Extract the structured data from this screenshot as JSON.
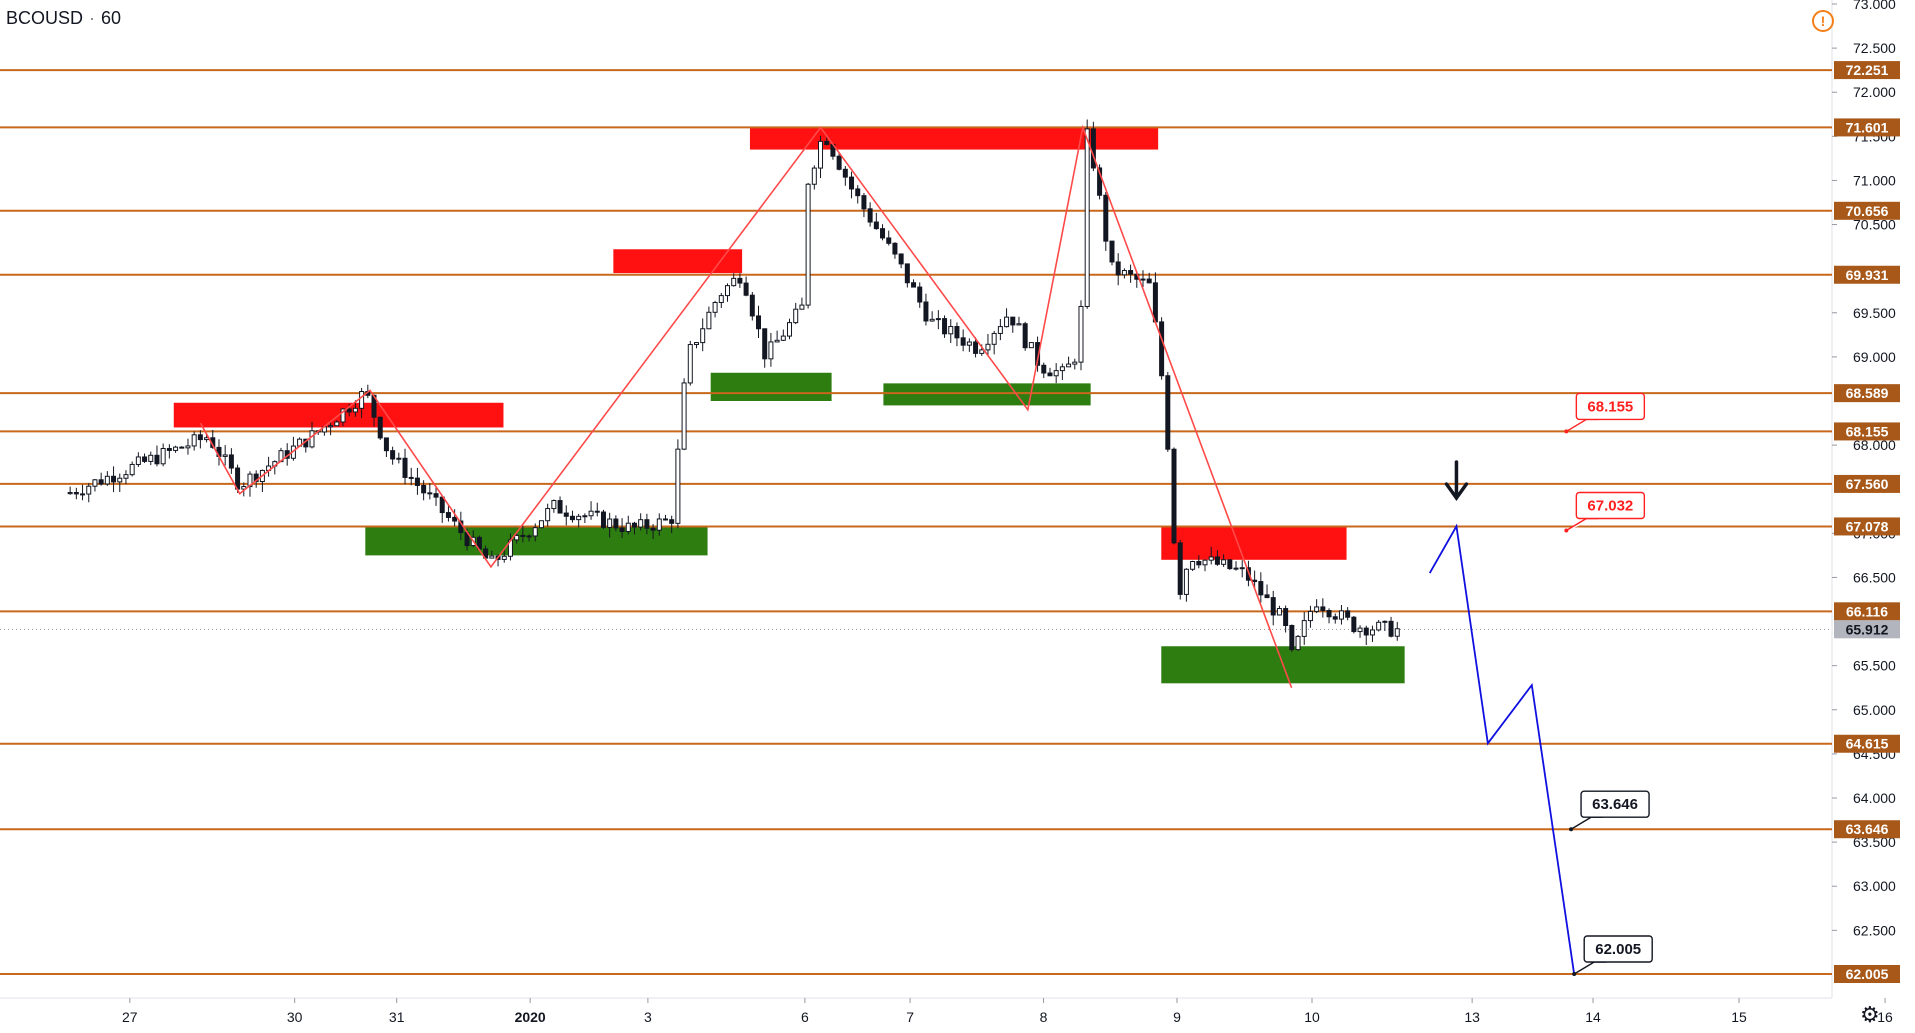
{
  "header": {
    "symbol": "BCOUSD",
    "interval": "60"
  },
  "icons": {
    "warning": "warning-icon",
    "settings": "gear-icon"
  },
  "colors": {
    "level_line": "#c8681c",
    "level_label_bg": "#a8591a",
    "resistance": "#ff1111",
    "support": "#2e7d10",
    "zigzag": "#ff4a4a",
    "projection": "#1010e0",
    "candle_up": "#ffffff",
    "candle_down": "#131722",
    "current_price_bg": "#b2b5be"
  },
  "chart_data": {
    "type": "candlestick",
    "symbol": "BCOUSD",
    "interval": "60",
    "ylim": [
      61.85,
      73.05
    ],
    "y_ticks": [
      "62.500",
      "63.000",
      "63.500",
      "64.000",
      "64.500",
      "65.000",
      "65.500",
      "66.500",
      "67.000",
      "68.000",
      "69.000",
      "69.500",
      "70.500",
      "71.000",
      "71.500",
      "72.000",
      "72.500",
      "73.000"
    ],
    "x_ticks": [
      {
        "label": "27",
        "t": 0.4
      },
      {
        "label": "30",
        "t": 1.45
      },
      {
        "label": "31",
        "t": 2.1
      },
      {
        "label": "2020",
        "t": 2.95
      },
      {
        "label": "3",
        "t": 3.7
      },
      {
        "label": "6",
        "t": 4.7
      },
      {
        "label": "7",
        "t": 5.37
      },
      {
        "label": "8",
        "t": 6.22
      },
      {
        "label": "9",
        "t": 7.07
      },
      {
        "label": "10",
        "t": 7.93
      },
      {
        "label": "13",
        "t": 8.95
      },
      {
        "label": "14",
        "t": 9.72
      },
      {
        "label": "15",
        "t": 10.65
      },
      {
        "label": "16",
        "t": 11.58
      }
    ],
    "xlim": [
      0,
      11.75
    ],
    "levels": [
      "72.251",
      "71.601",
      "70.656",
      "69.931",
      "68.589",
      "68.155",
      "67.560",
      "67.078",
      "66.116",
      "64.615",
      "63.646",
      "62.005"
    ],
    "current_price": "65.912",
    "price_path": [
      [
        0,
        67.45
      ],
      [
        0.9,
        68.1
      ],
      [
        1.1,
        67.55
      ],
      [
        1.6,
        68.15
      ],
      [
        1.9,
        68.6
      ],
      [
        2.05,
        67.9
      ],
      [
        2.7,
        66.65
      ],
      [
        3.1,
        67.3
      ],
      [
        3.6,
        67.05
      ],
      [
        3.85,
        67.15
      ],
      [
        3.95,
        69.0
      ],
      [
        4.15,
        69.7
      ],
      [
        4.3,
        69.95
      ],
      [
        4.45,
        69.0
      ],
      [
        4.7,
        69.6
      ],
      [
        4.72,
        71.0
      ],
      [
        4.82,
        71.55
      ],
      [
        5.0,
        70.9
      ],
      [
        5.3,
        70.05
      ],
      [
        5.5,
        69.4
      ],
      [
        5.8,
        69.1
      ],
      [
        6.0,
        69.5
      ],
      [
        6.2,
        68.9
      ],
      [
        6.35,
        68.8
      ],
      [
        6.45,
        69.1
      ],
      [
        6.5,
        71.6
      ],
      [
        6.65,
        70.0
      ],
      [
        6.9,
        69.8
      ],
      [
        7.0,
        68.4
      ],
      [
        7.03,
        67.4
      ],
      [
        7.08,
        66.3
      ],
      [
        7.15,
        66.75
      ],
      [
        7.5,
        66.55
      ],
      [
        7.75,
        66.0
      ],
      [
        7.8,
        65.6
      ],
      [
        7.95,
        66.25
      ],
      [
        8.2,
        65.95
      ],
      [
        8.5,
        65.9
      ]
    ],
    "zigzag": [
      [
        0.85,
        68.25
      ],
      [
        1.1,
        67.45
      ],
      [
        1.93,
        68.62
      ],
      [
        2.7,
        66.62
      ],
      [
        4.8,
        71.6
      ],
      [
        6.12,
        68.4
      ],
      [
        6.47,
        71.6
      ],
      [
        7.8,
        65.25
      ]
    ],
    "resistance_zones": [
      {
        "t0": 0.68,
        "t1": 2.78,
        "y0": 68.2,
        "y1": 68.48
      },
      {
        "t0": 3.48,
        "t1": 4.3,
        "y0": 69.95,
        "y1": 70.22
      },
      {
        "t0": 4.35,
        "t1": 6.95,
        "y0": 71.35,
        "y1": 71.6
      },
      {
        "t0": 6.97,
        "t1": 8.15,
        "y0": 66.7,
        "y1": 67.08
      }
    ],
    "support_zones": [
      {
        "t0": 1.9,
        "t1": 4.08,
        "y0": 66.75,
        "y1": 67.08
      },
      {
        "t0": 4.1,
        "t1": 4.87,
        "y0": 68.5,
        "y1": 68.82
      },
      {
        "t0": 5.2,
        "t1": 6.52,
        "y0": 68.45,
        "y1": 68.7
      },
      {
        "t0": 6.97,
        "t1": 8.52,
        "y0": 65.3,
        "y1": 65.72
      }
    ],
    "projection": [
      [
        8.68,
        66.55
      ],
      [
        8.85,
        67.08
      ],
      [
        9.05,
        64.62
      ],
      [
        9.33,
        65.28
      ],
      [
        9.6,
        62.0
      ]
    ],
    "callouts": [
      {
        "label": "68.155",
        "t": 9.55,
        "y": 68.155,
        "style": "red"
      },
      {
        "label": "67.032",
        "t": 9.55,
        "y": 67.032,
        "style": "red"
      },
      {
        "label": "63.646",
        "t": 9.58,
        "y": 63.646,
        "style": "black"
      },
      {
        "label": "62.005",
        "t": 9.6,
        "y": 62.005,
        "style": "black"
      }
    ],
    "arrow": {
      "direction": "down",
      "t": 8.85,
      "y": 67.4
    }
  }
}
